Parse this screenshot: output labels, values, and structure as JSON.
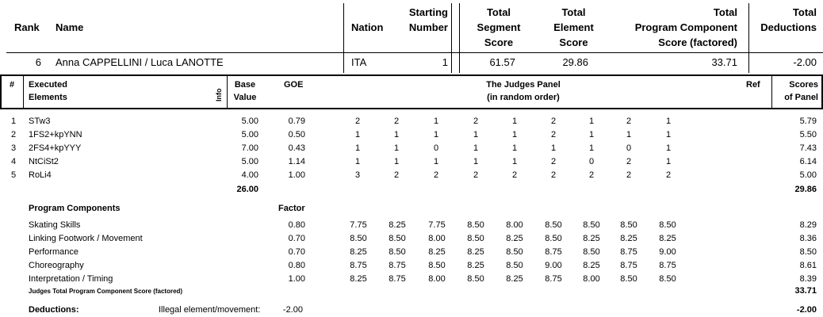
{
  "summary": {
    "headers": {
      "rank": "Rank",
      "name": "Name",
      "nation": "Nation",
      "starting_number": [
        "Starting",
        "Number"
      ],
      "total_segment": [
        "Total",
        "Segment",
        "Score"
      ],
      "total_element": [
        "Total",
        "Element",
        "Score"
      ],
      "total_pcs": [
        "Total",
        "Program  Component",
        "Score (factored)"
      ],
      "total_deductions": [
        "Total",
        "Deductions"
      ]
    },
    "values": {
      "rank": "6",
      "name": "Anna CAPPELLINI / Luca LANOTTE",
      "nation": "ITA",
      "starting_number": "1",
      "total_segment": "61.57",
      "total_element": "29.86",
      "total_pcs": "33.71",
      "total_deductions": "-2.00"
    }
  },
  "elements_header": {
    "num": "#",
    "executed": [
      "Executed",
      "Elements"
    ],
    "info": "Info",
    "base": [
      "Base",
      "Value"
    ],
    "goe": "GOE",
    "panel": [
      "The Judges Panel",
      "(in random order)"
    ],
    "ref": "Ref",
    "scores": [
      "Scores",
      "of Panel"
    ]
  },
  "elements": [
    {
      "n": "1",
      "name": "STw3",
      "base": "5.00",
      "goe": "0.79",
      "judges": [
        "2",
        "2",
        "1",
        "2",
        "1",
        "2",
        "1",
        "2",
        "1"
      ],
      "score": "5.79"
    },
    {
      "n": "2",
      "name": "1FS2+kpYNN",
      "base": "5.00",
      "goe": "0.50",
      "judges": [
        "1",
        "1",
        "1",
        "1",
        "1",
        "2",
        "1",
        "1",
        "1"
      ],
      "score": "5.50"
    },
    {
      "n": "3",
      "name": "2FS4+kpYYY",
      "base": "7.00",
      "goe": "0.43",
      "judges": [
        "1",
        "1",
        "0",
        "1",
        "1",
        "1",
        "1",
        "0",
        "1"
      ],
      "score": "7.43"
    },
    {
      "n": "4",
      "name": "NtCiSt2",
      "base": "5.00",
      "goe": "1.14",
      "judges": [
        "1",
        "1",
        "1",
        "1",
        "1",
        "2",
        "0",
        "2",
        "1"
      ],
      "score": "6.14"
    },
    {
      "n": "5",
      "name": "RoLi4",
      "base": "4.00",
      "goe": "1.00",
      "judges": [
        "3",
        "2",
        "2",
        "2",
        "2",
        "2",
        "2",
        "2",
        "2"
      ],
      "score": "5.00"
    }
  ],
  "elements_total": {
    "base": "26.00",
    "score": "29.86"
  },
  "program_components": {
    "title": "Program Components",
    "factor_label": "Factor",
    "items": [
      {
        "name": "Skating Skills",
        "factor": "0.80",
        "judges": [
          "7.75",
          "8.25",
          "7.75",
          "8.50",
          "8.00",
          "8.50",
          "8.50",
          "8.50",
          "8.50"
        ],
        "score": "8.29"
      },
      {
        "name": "Linking Footwork / Movement",
        "factor": "0.70",
        "judges": [
          "8.50",
          "8.50",
          "8.00",
          "8.50",
          "8.25",
          "8.50",
          "8.25",
          "8.25",
          "8.25"
        ],
        "score": "8.36"
      },
      {
        "name": "Performance",
        "factor": "0.70",
        "judges": [
          "8.25",
          "8.50",
          "8.25",
          "8.25",
          "8.50",
          "8.75",
          "8.50",
          "8.75",
          "9.00"
        ],
        "score": "8.50"
      },
      {
        "name": "Choreography",
        "factor": "0.80",
        "judges": [
          "8.75",
          "8.75",
          "8.50",
          "8.25",
          "8.50",
          "9.00",
          "8.25",
          "8.75",
          "8.75"
        ],
        "score": "8.61"
      },
      {
        "name": "Interpretation / Timing",
        "factor": "1.00",
        "judges": [
          "8.25",
          "8.75",
          "8.00",
          "8.50",
          "8.25",
          "8.75",
          "8.00",
          "8.50",
          "8.50"
        ],
        "score": "8.39"
      }
    ],
    "total_label": "Judges Total Program Component Score (factored)",
    "total": "33.71"
  },
  "deductions": {
    "label": "Deductions:",
    "item": "Illegal element/movement:",
    "value": "-2.00",
    "total": "-2.00"
  }
}
